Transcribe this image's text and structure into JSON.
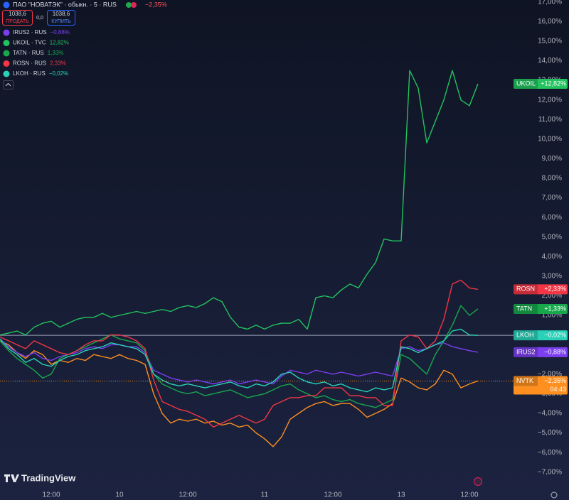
{
  "chart_data": {
    "type": "line",
    "title": "ПАО \"НОВАТЭК\" · обыкн. · 5 · RUS",
    "title_change": "−2,35%",
    "sell": {
      "price": "1038,6",
      "label": "ПРОДАТЬ"
    },
    "spread": "0,0",
    "buy": {
      "price": "1038,6",
      "label": "КУПИТЬ"
    },
    "brand": "TradingView",
    "grid": false,
    "categories": [
      null,
      null,
      null,
      null,
      null,
      null,
      "12:00",
      null,
      null,
      null,
      null,
      null,
      null,
      null,
      "10",
      null,
      null,
      null,
      null,
      null,
      null,
      null,
      "12:00",
      null,
      null,
      null,
      null,
      null,
      null,
      null,
      null,
      "11",
      null,
      null,
      null,
      null,
      null,
      null,
      null,
      "12:00",
      null,
      null,
      null,
      null,
      null,
      null,
      null,
      "13",
      null,
      null,
      null,
      null,
      null,
      null,
      null,
      "12:00",
      null
    ],
    "ylim": [
      -7.7,
      17.1
    ],
    "yticks": [
      {
        "value": -7,
        "label": "−7,00%"
      },
      {
        "value": -6,
        "label": "−6,00%"
      },
      {
        "value": -5,
        "label": "−5,00%"
      },
      {
        "value": -4,
        "label": "−4,00%"
      },
      {
        "value": -3,
        "label": "−3,00%"
      },
      {
        "value": -2,
        "label": "−2,00%"
      },
      {
        "value": -1,
        "label": "−1,00%"
      },
      {
        "value": 0,
        "label": "0,00%"
      },
      {
        "value": 1,
        "label": "1,00%"
      },
      {
        "value": 2,
        "label": "2,00%"
      },
      {
        "value": 3,
        "label": "3,00%"
      },
      {
        "value": 4,
        "label": "4,00%"
      },
      {
        "value": 5,
        "label": "5,00%"
      },
      {
        "value": 6,
        "label": "6,00%"
      },
      {
        "value": 7,
        "label": "7,00%"
      },
      {
        "value": 8,
        "label": "8,00%"
      },
      {
        "value": 9,
        "label": "9,00%"
      },
      {
        "value": 10,
        "label": "10,00%"
      },
      {
        "value": 11,
        "label": "11,00%"
      },
      {
        "value": 12,
        "label": "12,00%"
      },
      {
        "value": 13,
        "label": "13,00%"
      },
      {
        "value": 14,
        "label": "14,00%"
      },
      {
        "value": 15,
        "label": "15,00%"
      },
      {
        "value": 16,
        "label": "16,00%"
      },
      {
        "value": 17,
        "label": "17,00%"
      }
    ],
    "series": [
      {
        "name": "NVTK",
        "color": "#ff8f1f",
        "last_label": "−2,35%",
        "countdown": "04:43",
        "price_line": "dotted",
        "values": [
          -0.3,
          -0.5,
          -0.9,
          -1.2,
          -0.8,
          -1.0,
          -1.5,
          -1.3,
          -1.4,
          -1.2,
          -1.3,
          -1.0,
          -1.1,
          -1.2,
          -1.0,
          -1.2,
          -1.3,
          -1.5,
          -3.0,
          -4.0,
          -4.5,
          -4.3,
          -4.4,
          -4.3,
          -4.5,
          -4.4,
          -4.6,
          -4.5,
          -4.7,
          -4.6,
          -5.0,
          -5.3,
          -5.7,
          -5.2,
          -4.3,
          -4.0,
          -3.7,
          -3.5,
          -3.4,
          -3.6,
          -3.5,
          -3.5,
          -3.8,
          -4.2,
          -4.0,
          -3.8,
          -3.5,
          -2.2,
          -2.4,
          -2.7,
          -2.8,
          -2.5,
          -1.8,
          -2.0,
          -2.7,
          -2.5,
          -2.35
        ]
      },
      {
        "name": "IRUS2",
        "legend": "IRUS2 · RUS",
        "change": "−0,88%",
        "color": "#7c3ff0",
        "last_label": "−0,88%",
        "values": [
          -0.2,
          -0.6,
          -0.9,
          -1.1,
          -0.9,
          -1.2,
          -1.3,
          -1.1,
          -1.0,
          -0.9,
          -0.7,
          -0.6,
          -0.7,
          -0.5,
          -0.5,
          -0.6,
          -0.6,
          -0.9,
          -1.8,
          -2.0,
          -2.2,
          -2.3,
          -2.4,
          -2.3,
          -2.4,
          -2.5,
          -2.4,
          -2.3,
          -2.5,
          -2.4,
          -2.3,
          -2.4,
          -2.5,
          -2.1,
          -1.8,
          -1.9,
          -2.0,
          -1.8,
          -1.9,
          -2.0,
          -1.9,
          -2.0,
          -2.1,
          -2.0,
          -1.9,
          -2.0,
          -2.1,
          -0.7,
          -0.6,
          -0.8,
          -0.7,
          -0.5,
          -0.4,
          -0.6,
          -0.7,
          -0.8,
          -0.88
        ]
      },
      {
        "name": "UKOIL",
        "legend": "UKOIL · TVC",
        "change": "12,82%",
        "color": "#22c35e",
        "last_label": "+12,82%",
        "values": [
          0.0,
          0.1,
          0.2,
          0.0,
          0.4,
          0.6,
          0.7,
          0.4,
          0.6,
          0.8,
          0.9,
          0.9,
          1.1,
          0.9,
          1.0,
          1.1,
          1.2,
          1.1,
          1.2,
          1.3,
          1.2,
          1.4,
          1.5,
          1.4,
          1.6,
          1.9,
          1.7,
          0.9,
          0.4,
          0.3,
          0.5,
          0.3,
          0.5,
          0.6,
          0.6,
          0.8,
          0.3,
          1.9,
          2.0,
          1.9,
          2.3,
          2.6,
          2.4,
          3.1,
          3.7,
          4.9,
          4.8,
          4.8,
          13.5,
          12.6,
          9.8,
          10.9,
          12.0,
          13.5,
          12.0,
          11.7,
          12.82
        ]
      },
      {
        "name": "TATN",
        "legend": "TATN · RUS",
        "change": "1,33%",
        "color": "#17a84c",
        "last_label": "+1,33%",
        "values": [
          -0.3,
          -0.8,
          -1.2,
          -1.5,
          -1.8,
          -2.2,
          -2.0,
          -1.2,
          -1.0,
          -0.8,
          -0.6,
          -0.4,
          -0.2,
          0.0,
          -0.2,
          -0.3,
          -0.4,
          -0.8,
          -2.0,
          -2.5,
          -2.7,
          -2.9,
          -3.0,
          -2.9,
          -3.1,
          -3.0,
          -2.9,
          -2.8,
          -3.0,
          -3.2,
          -3.1,
          -3.0,
          -2.8,
          -2.6,
          -2.5,
          -2.8,
          -3.0,
          -3.2,
          -3.1,
          -3.3,
          -3.4,
          -3.3,
          -3.5,
          -3.6,
          -3.7,
          -3.5,
          -3.3,
          -1.0,
          -1.2,
          -1.6,
          -2.0,
          -1.0,
          -0.3,
          0.5,
          1.5,
          1.0,
          1.33
        ]
      },
      {
        "name": "ROSN",
        "legend": "ROSN · RUS",
        "change": "2,33%",
        "color": "#f23645",
        "last_label": "+2,33%",
        "values": [
          -0.1,
          -0.3,
          -0.5,
          -0.7,
          -0.3,
          -0.5,
          -0.7,
          -0.9,
          -1.0,
          -0.8,
          -0.5,
          -0.3,
          -0.3,
          0.0,
          0.0,
          -0.1,
          -0.3,
          -0.7,
          -2.3,
          -3.4,
          -3.6,
          -3.8,
          -3.9,
          -4.1,
          -4.3,
          -4.7,
          -4.5,
          -4.3,
          -4.1,
          -4.3,
          -4.5,
          -4.3,
          -3.6,
          -3.4,
          -3.2,
          -3.2,
          -3.1,
          -3.1,
          -2.7,
          -2.7,
          -2.7,
          -3.1,
          -3.1,
          -3.2,
          -3.2,
          -3.6,
          -3.6,
          -0.3,
          0.0,
          -0.1,
          -0.7,
          -0.3,
          0.8,
          2.6,
          2.8,
          2.4,
          2.33
        ]
      },
      {
        "name": "LKOH",
        "legend": "LKOH · RUS",
        "change": "−0,02%",
        "color": "#2ad1b8",
        "last_label": "−0,02%",
        "price_line": "solid",
        "values": [
          -0.2,
          -0.7,
          -1.0,
          -1.4,
          -1.2,
          -1.5,
          -1.6,
          -1.3,
          -1.1,
          -1.0,
          -0.8,
          -0.7,
          -0.6,
          -0.4,
          -0.5,
          -0.6,
          -0.7,
          -1.0,
          -2.0,
          -2.3,
          -2.5,
          -2.6,
          -2.5,
          -2.6,
          -2.7,
          -2.6,
          -2.5,
          -2.4,
          -2.6,
          -2.7,
          -2.5,
          -2.6,
          -2.4,
          -2.0,
          -1.9,
          -2.2,
          -2.4,
          -2.5,
          -2.4,
          -2.6,
          -2.5,
          -2.7,
          -2.8,
          -2.9,
          -2.7,
          -2.8,
          -2.7,
          -0.6,
          -0.7,
          -0.9,
          -0.7,
          -0.5,
          -0.3,
          0.2,
          0.3,
          0.0,
          -0.02
        ]
      }
    ]
  }
}
